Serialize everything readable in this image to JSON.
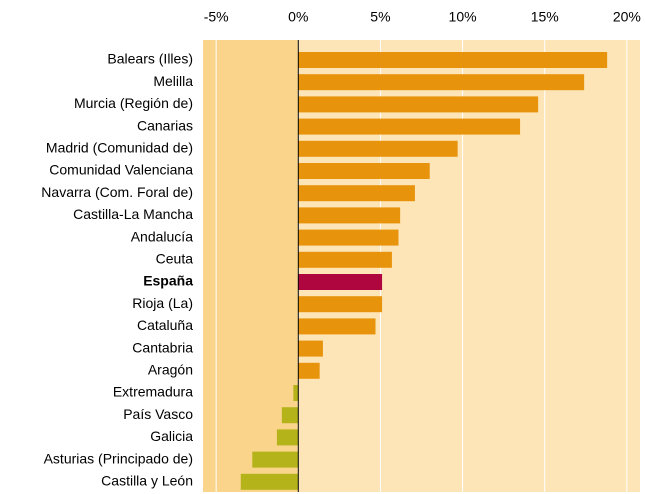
{
  "chart_data": {
    "type": "barh",
    "categories": [
      "Balears (Illes)",
      "Melilla",
      "Murcia (Región de)",
      "Canarias",
      "Madrid (Comunidad de)",
      "Comunidad Valenciana",
      "Navarra (Com. Foral de)",
      "Castilla-La Mancha",
      "Andalucía",
      "Ceuta",
      "España",
      "Rioja (La)",
      "Cataluña",
      "Cantabria",
      "Aragón",
      "Extremadura",
      "País Vasco",
      "Galicia",
      "Asturias (Principado de)",
      "Castilla y León"
    ],
    "values": [
      18.8,
      17.4,
      14.6,
      13.5,
      9.7,
      8.0,
      7.1,
      6.2,
      6.1,
      5.7,
      5.1,
      5.1,
      4.7,
      1.5,
      1.3,
      -0.3,
      -1.0,
      -1.3,
      -2.8,
      -3.5
    ],
    "colors": [
      "#e8930c",
      "#e8930c",
      "#e8930c",
      "#e8930c",
      "#e8930c",
      "#e8930c",
      "#e8930c",
      "#e8930c",
      "#e8930c",
      "#e8930c",
      "#b0063f",
      "#e8930c",
      "#e8930c",
      "#e8930c",
      "#e8930c",
      "#b5b31a",
      "#b5b31a",
      "#b5b31a",
      "#b5b31a",
      "#b5b31a"
    ],
    "xlim": [
      -5.8,
      20.8
    ],
    "xticks": [
      {
        "value": -5,
        "label": "-5%"
      },
      {
        "value": 0,
        "label": "0%"
      },
      {
        "value": 5,
        "label": "5%"
      },
      {
        "value": 10,
        "label": "10%"
      },
      {
        "value": 15,
        "label": "15%"
      },
      {
        "value": 20,
        "label": "20%"
      }
    ],
    "grid": true
  }
}
